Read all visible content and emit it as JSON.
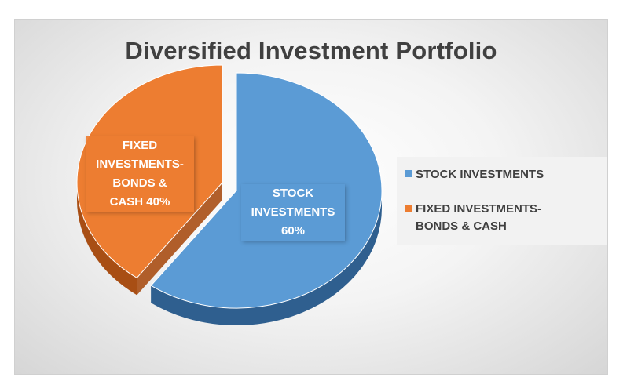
{
  "colors": {
    "stock": "#5b9bd5",
    "stock_dark": "#2f5f8f",
    "fixed": "#ed7d31",
    "fixed_dark": "#a84e14"
  },
  "chart_data": {
    "type": "pie",
    "title": "Diversified Investment Portfolio",
    "slices": [
      {
        "name": "STOCK INVESTMENTS",
        "value": 60,
        "label_lines": [
          "STOCK",
          "INVESTMENTS",
          "60%"
        ]
      },
      {
        "name": "FIXED INVESTMENTS-BONDS & CASH",
        "value": 40,
        "label_lines": [
          "FIXED",
          "INVESTMENTS-",
          "BONDS &",
          "CASH 40%"
        ]
      }
    ],
    "legend": {
      "position": "right",
      "entries": [
        {
          "lines": [
            "STOCK INVESTMENTS"
          ]
        },
        {
          "lines": [
            "FIXED INVESTMENTS-",
            "BONDS & CASH"
          ]
        }
      ]
    },
    "exploded": "FIXED INVESTMENTS-BONDS & CASH",
    "style": "3d"
  }
}
